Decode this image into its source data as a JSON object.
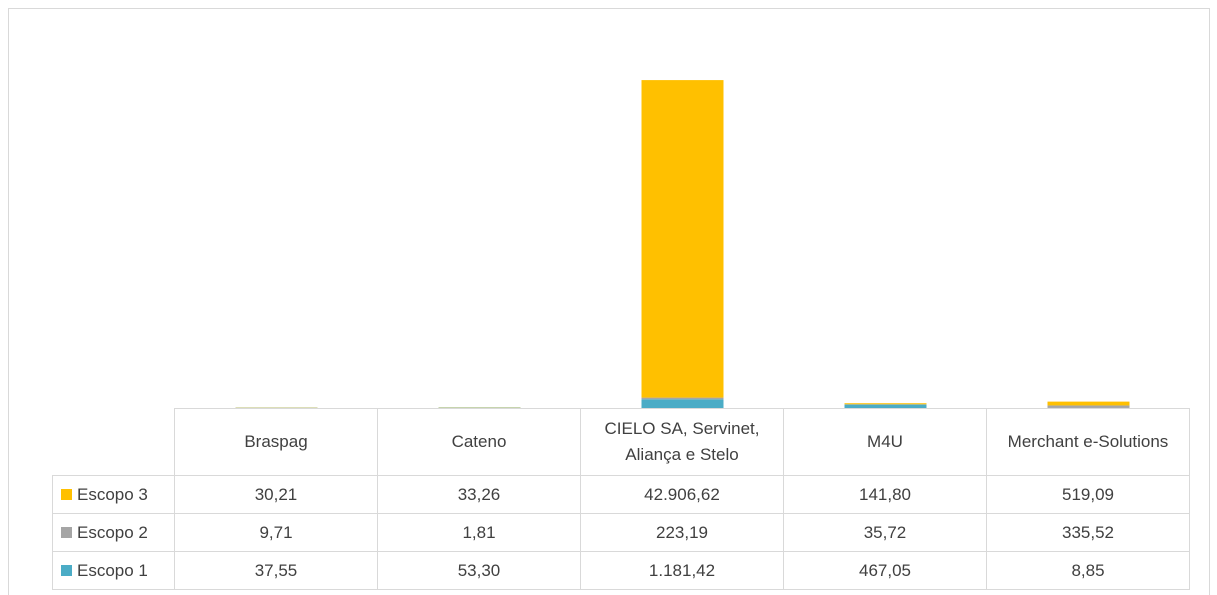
{
  "chart_data": {
    "type": "stacked_bar",
    "categories": [
      "Braspag",
      "Cateno",
      "CIELO SA, Servinet, Aliança e Stelo",
      "M4U",
      "Merchant e-Solutions"
    ],
    "series": [
      {
        "name": "Escopo 1",
        "color": "#4bacc6",
        "values": [
          37.55,
          53.3,
          1181.42,
          467.05,
          8.85
        ],
        "value_labels": [
          "37,55",
          "53,30",
          "1.181,42",
          "467,05",
          "8,85"
        ]
      },
      {
        "name": "Escopo 2",
        "color": "#a5a5a5",
        "values": [
          9.71,
          1.81,
          223.19,
          35.72,
          335.52
        ],
        "value_labels": [
          "9,71",
          "1,81",
          "223,19",
          "35,72",
          "335,52"
        ]
      },
      {
        "name": "Escopo 3",
        "color": "#ffc000",
        "values": [
          30.21,
          33.26,
          42906.62,
          141.8,
          519.09
        ],
        "value_labels": [
          "30,21",
          "33,26",
          "42.906,62",
          "141,80",
          "519,09"
        ]
      }
    ],
    "ylim": [
      0,
      50000
    ]
  }
}
